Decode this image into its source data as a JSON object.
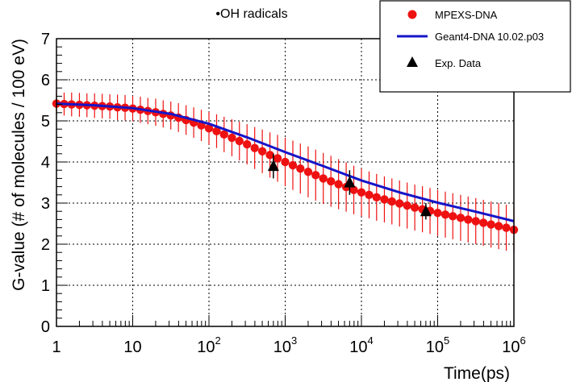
{
  "chart_data": {
    "type": "scatter",
    "title": "•OH radicals",
    "xlabel": "Time(ps)",
    "ylabel": "G-value (# of molecules / 100 eV)",
    "xscale": "log",
    "xlim": [
      1,
      1000000
    ],
    "ylim": [
      0,
      7
    ],
    "grid": true,
    "legend_position": "top-right",
    "x_tick_labels": [
      {
        "base": "1",
        "exp": ""
      },
      {
        "base": "10",
        "exp": ""
      },
      {
        "base": "10",
        "exp": "2"
      },
      {
        "base": "10",
        "exp": "3"
      },
      {
        "base": "10",
        "exp": "4"
      },
      {
        "base": "10",
        "exp": "5"
      },
      {
        "base": "10",
        "exp": "6"
      }
    ],
    "y_tick_labels": [
      "0",
      "1",
      "2",
      "3",
      "4",
      "5",
      "6",
      "7"
    ],
    "legend": [
      "MPEXS-DNA",
      "Geant4-DNA 10.02.p03",
      "Exp. Data"
    ],
    "series": [
      {
        "name": "MPEXS-DNA",
        "style": "points-with-errorbars",
        "color": "#ee1111",
        "x": [
          1,
          1.26,
          1.58,
          2,
          2.51,
          3.16,
          3.98,
          5.01,
          6.31,
          7.94,
          10,
          12.6,
          15.8,
          20,
          25.1,
          31.6,
          39.8,
          50.1,
          63.1,
          79.4,
          100,
          126,
          158,
          200,
          251,
          316,
          398,
          501,
          631,
          794,
          1000,
          1260,
          1580,
          2000,
          2510,
          3160,
          3980,
          5010,
          6310,
          7940,
          10000,
          12600,
          15800,
          20000,
          25100,
          31600,
          39800,
          50100,
          63100,
          79400,
          100000,
          126000,
          158000,
          200000,
          251000,
          316000,
          398000,
          501000,
          631000,
          794000,
          1000000
        ],
        "y": [
          5.42,
          5.41,
          5.4,
          5.39,
          5.38,
          5.37,
          5.36,
          5.35,
          5.33,
          5.32,
          5.3,
          5.27,
          5.24,
          5.21,
          5.17,
          5.13,
          5.08,
          5.02,
          4.96,
          4.89,
          4.82,
          4.75,
          4.67,
          4.59,
          4.51,
          4.43,
          4.34,
          4.26,
          4.17,
          4.09,
          4.0,
          3.92,
          3.84,
          3.76,
          3.68,
          3.6,
          3.53,
          3.46,
          3.39,
          3.32,
          3.26,
          3.2,
          3.14,
          3.09,
          3.04,
          2.99,
          2.94,
          2.89,
          2.85,
          2.81,
          2.76,
          2.72,
          2.68,
          2.64,
          2.6,
          2.56,
          2.52,
          2.48,
          2.44,
          2.4,
          2.35
        ],
        "error": [
          0.28,
          0.28,
          0.29,
          0.29,
          0.29,
          0.3,
          0.3,
          0.3,
          0.31,
          0.31,
          0.31,
          0.32,
          0.32,
          0.33,
          0.33,
          0.34,
          0.35,
          0.36,
          0.37,
          0.38,
          0.4,
          0.41,
          0.43,
          0.45,
          0.47,
          0.49,
          0.51,
          0.53,
          0.55,
          0.57,
          0.59,
          0.6,
          0.61,
          0.62,
          0.62,
          0.62,
          0.62,
          0.61,
          0.6,
          0.59,
          0.58,
          0.57,
          0.57,
          0.56,
          0.56,
          0.56,
          0.56,
          0.56,
          0.56,
          0.56,
          0.56,
          0.56,
          0.56,
          0.56,
          0.56,
          0.56,
          0.56,
          0.56,
          0.56,
          0.56,
          0.56
        ]
      },
      {
        "name": "Geant4-DNA 10.02.p03",
        "style": "line",
        "color": "#1515c8",
        "x": [
          1,
          3.16,
          10,
          31.6,
          100,
          316,
          1000,
          3160,
          10000,
          31600,
          100000,
          316000,
          1000000
        ],
        "y": [
          5.42,
          5.38,
          5.31,
          5.17,
          4.93,
          4.6,
          4.24,
          3.9,
          3.55,
          3.26,
          3.01,
          2.79,
          2.56
        ]
      },
      {
        "name": "Exp. Data",
        "style": "triangles-with-errorbars",
        "color": "#000000",
        "x": [
          700,
          7000,
          70000
        ],
        "y": [
          3.9,
          3.5,
          2.8
        ],
        "error": [
          0.3,
          0.3,
          0.2
        ]
      }
    ]
  }
}
